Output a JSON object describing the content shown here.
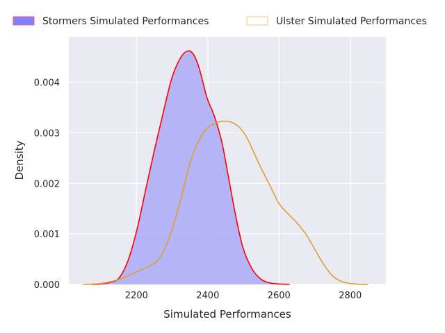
{
  "chart_data": {
    "type": "area",
    "title": "",
    "xlabel": "Simulated Performances",
    "ylabel": "Density",
    "xlim": [
      2010,
      2900
    ],
    "ylim": [
      0,
      0.0049
    ],
    "xticks": [
      2200,
      2400,
      2600,
      2800
    ],
    "yticks": [
      0,
      0.001,
      0.002,
      0.003,
      0.004
    ],
    "xtick_labels": [
      "2200",
      "2400",
      "2600",
      "2800"
    ],
    "ytick_labels": [
      "0.000",
      "0.001",
      "0.002",
      "0.003",
      "0.004"
    ],
    "grid": true,
    "legend_placement": "top",
    "series": [
      {
        "name": "Stormers Simulated Performances",
        "style": "filled",
        "fill_color": "#aaaaf8",
        "line_color": "#ff0000",
        "x": [
          2075,
          2100,
          2125,
          2150,
          2175,
          2200,
          2225,
          2250,
          2275,
          2300,
          2325,
          2345,
          2360,
          2375,
          2390,
          2400,
          2420,
          2440,
          2460,
          2480,
          2500,
          2525,
          2550,
          2575,
          2600,
          2630
        ],
        "y": [
          0.0,
          1e-05,
          4e-05,
          0.00012,
          0.00045,
          0.00105,
          0.00185,
          0.00265,
          0.0034,
          0.0041,
          0.0045,
          0.00462,
          0.00455,
          0.0043,
          0.0039,
          0.00365,
          0.0033,
          0.0028,
          0.00205,
          0.0013,
          0.0007,
          0.0003,
          0.0001,
          3e-05,
          1e-05,
          0.0
        ]
      },
      {
        "name": "Ulster Simulated Performances",
        "style": "line",
        "line_color": "#daa030",
        "x": [
          2050,
          2100,
          2150,
          2200,
          2250,
          2275,
          2300,
          2325,
          2350,
          2375,
          2400,
          2425,
          2450,
          2470,
          2490,
          2510,
          2530,
          2550,
          2575,
          2600,
          2625,
          2650,
          2675,
          2700,
          2725,
          2750,
          2775,
          2800,
          2825,
          2850
        ],
        "y": [
          0.0,
          2e-05,
          0.0001,
          0.00025,
          0.00042,
          0.00065,
          0.0011,
          0.0017,
          0.0024,
          0.00285,
          0.0031,
          0.0032,
          0.00323,
          0.0032,
          0.0031,
          0.0029,
          0.0026,
          0.0023,
          0.00195,
          0.0016,
          0.0014,
          0.00122,
          0.001,
          0.0007,
          0.0004,
          0.00017,
          6e-05,
          2e-05,
          5e-06,
          0.0
        ]
      }
    ],
    "colors": {
      "plot_background": "#eaeaf2",
      "grid": "#ffffff",
      "stormers_fill": "#aaaaf8",
      "stormers_line": "#ff0000",
      "ulster_line": "#daa030",
      "legend_stormers_patch": "#8080ff"
    }
  }
}
